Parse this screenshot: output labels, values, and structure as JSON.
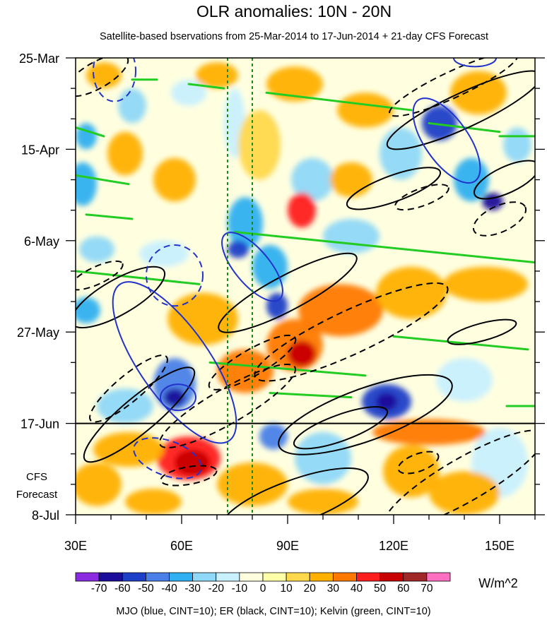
{
  "chart_data": {
    "type": "heatmap",
    "title": "OLR anomalies: 10N - 20N",
    "subtitle": "Satellite-based bservations from 25-Mar-2014 to 17-Jun-2014 + 21-day CFS Forecast",
    "x_ticks": [
      {
        "lon": 30,
        "label": "30E"
      },
      {
        "lon": 60,
        "label": "60E"
      },
      {
        "lon": 90,
        "label": "90E"
      },
      {
        "lon": 120,
        "label": "120E"
      },
      {
        "lon": 150,
        "label": "150E"
      }
    ],
    "x_range": [
      30,
      160
    ],
    "y_range_days": [
      0,
      105
    ],
    "y_ticks": [
      {
        "day": 0,
        "label": "25-Mar"
      },
      {
        "day": 21,
        "label": "15-Apr"
      },
      {
        "day": 42,
        "label": "6-May"
      },
      {
        "day": 63,
        "label": "27-May"
      },
      {
        "day": 84,
        "label": "17-Jun"
      },
      {
        "day": 105,
        "label": "8-Jul"
      }
    ],
    "forecast_label": [
      "CFS",
      "Forecast"
    ],
    "forecast_start_day": 84,
    "reference_lons": [
      73,
      80
    ],
    "colorbar": {
      "levels": [
        "-70",
        "-60",
        "-50",
        "-40",
        "-30",
        "-20",
        "-10",
        "0",
        "10",
        "20",
        "30",
        "40",
        "50",
        "60",
        "70"
      ],
      "colors": [
        "#8a2be2",
        "#1c0e9b",
        "#1e3fc8",
        "#4a7fe8",
        "#2fb0f0",
        "#8fd8f8",
        "#c8f0ff",
        "#ffffe0",
        "#ffffa8",
        "#ffd84c",
        "#ffb000",
        "#ff7800",
        "#ff1e1e",
        "#c80000",
        "#a02828",
        "#ff70c0"
      ],
      "units": "W/m^2"
    },
    "footer": "MJO (blue, CINT=10); ER (black, CINT=10); Kelvin (green, CINT=10)",
    "anomaly_blobs": [
      {
        "lon": 33,
        "day": 18,
        "rx": 3,
        "ry": 3,
        "v": -35
      },
      {
        "lon": 32,
        "day": 29,
        "rx": 4,
        "ry": 5,
        "v": -40
      },
      {
        "lon": 36,
        "day": 44,
        "rx": 5,
        "ry": 3,
        "v": -30
      },
      {
        "lon": 33,
        "day": 58,
        "rx": 4,
        "ry": 3,
        "v": -40
      },
      {
        "lon": 46,
        "day": 11,
        "rx": 4,
        "ry": 4,
        "v": -25
      },
      {
        "lon": 62,
        "day": 8,
        "rx": 5,
        "ry": 3,
        "v": -20
      },
      {
        "lon": 75,
        "day": 15,
        "rx": 3,
        "ry": 8,
        "v": -15
      },
      {
        "lon": 78,
        "day": 38,
        "rx": 5,
        "ry": 6,
        "v": -40
      },
      {
        "lon": 76,
        "day": 44,
        "rx": 3,
        "ry": 2,
        "v": -60
      },
      {
        "lon": 85,
        "day": 48,
        "rx": 5,
        "ry": 5,
        "v": -40
      },
      {
        "lon": 87,
        "day": 57,
        "rx": 3,
        "ry": 3,
        "v": -60
      },
      {
        "lon": 97,
        "day": 28,
        "rx": 6,
        "ry": 5,
        "v": -25
      },
      {
        "lon": 108,
        "day": 41,
        "rx": 8,
        "ry": 4,
        "v": -30
      },
      {
        "lon": 122,
        "day": 22,
        "rx": 6,
        "ry": 6,
        "v": -30
      },
      {
        "lon": 133,
        "day": 15,
        "rx": 5,
        "ry": 4,
        "v": -60
      },
      {
        "lon": 142,
        "day": 28,
        "rx": 5,
        "ry": 5,
        "v": -40
      },
      {
        "lon": 148,
        "day": 33,
        "rx": 3,
        "ry": 2,
        "v": -70
      },
      {
        "lon": 155,
        "day": 20,
        "rx": 4,
        "ry": 4,
        "v": -30
      },
      {
        "lon": 58,
        "day": 75,
        "rx": 6,
        "ry": 6,
        "v": -50
      },
      {
        "lon": 58,
        "day": 78,
        "rx": 3,
        "ry": 2,
        "v": -70
      },
      {
        "lon": 44,
        "day": 80,
        "rx": 8,
        "ry": 4,
        "v": -25
      },
      {
        "lon": 118,
        "day": 79,
        "rx": 7,
        "ry": 4,
        "v": -55
      },
      {
        "lon": 118,
        "day": 79,
        "rx": 3,
        "ry": 2,
        "v": -70
      },
      {
        "lon": 86,
        "day": 87,
        "rx": 4,
        "ry": 3,
        "v": -50
      },
      {
        "lon": 140,
        "day": 74,
        "rx": 8,
        "ry": 5,
        "v": -20
      },
      {
        "lon": 100,
        "day": 92,
        "rx": 8,
        "ry": 6,
        "v": -25
      },
      {
        "lon": 150,
        "day": 93,
        "rx": 8,
        "ry": 8,
        "v": -20
      },
      {
        "lon": 55,
        "day": 45,
        "rx": 7,
        "ry": 3,
        "v": -15
      },
      {
        "lon": 38,
        "day": 4,
        "rx": 5,
        "ry": 3,
        "v": 20
      },
      {
        "lon": 70,
        "day": 4,
        "rx": 6,
        "ry": 3,
        "v": 20
      },
      {
        "lon": 92,
        "day": 6,
        "rx": 8,
        "ry": 4,
        "v": 25
      },
      {
        "lon": 112,
        "day": 12,
        "rx": 8,
        "ry": 4,
        "v": 25
      },
      {
        "lon": 144,
        "day": 8,
        "rx": 8,
        "ry": 5,
        "v": 20
      },
      {
        "lon": 44,
        "day": 22,
        "rx": 5,
        "ry": 5,
        "v": 25
      },
      {
        "lon": 58,
        "day": 28,
        "rx": 6,
        "ry": 5,
        "v": 20
      },
      {
        "lon": 94,
        "day": 35,
        "rx": 4,
        "ry": 4,
        "v": 40
      },
      {
        "lon": 108,
        "day": 28,
        "rx": 6,
        "ry": 4,
        "v": 25
      },
      {
        "lon": 82,
        "day": 20,
        "rx": 6,
        "ry": 8,
        "v": 15
      },
      {
        "lon": 66,
        "day": 60,
        "rx": 10,
        "ry": 6,
        "v": 25
      },
      {
        "lon": 92,
        "day": 66,
        "rx": 8,
        "ry": 6,
        "v": 35
      },
      {
        "lon": 94,
        "day": 68,
        "rx": 4,
        "ry": 3,
        "v": 50
      },
      {
        "lon": 105,
        "day": 58,
        "rx": 12,
        "ry": 6,
        "v": 30
      },
      {
        "lon": 125,
        "day": 54,
        "rx": 10,
        "ry": 6,
        "v": 25
      },
      {
        "lon": 146,
        "day": 52,
        "rx": 12,
        "ry": 4,
        "v": 20
      },
      {
        "lon": 78,
        "day": 72,
        "rx": 8,
        "ry": 5,
        "v": 30
      },
      {
        "lon": 62,
        "day": 92,
        "rx": 9,
        "ry": 5,
        "v": 45
      },
      {
        "lon": 63,
        "day": 93,
        "rx": 5,
        "ry": 3,
        "v": 55
      },
      {
        "lon": 45,
        "day": 90,
        "rx": 10,
        "ry": 4,
        "v": 25
      },
      {
        "lon": 36,
        "day": 98,
        "rx": 7,
        "ry": 5,
        "v": 20
      },
      {
        "lon": 80,
        "day": 98,
        "rx": 10,
        "ry": 5,
        "v": 25
      },
      {
        "lon": 130,
        "day": 86,
        "rx": 16,
        "ry": 3,
        "v": 30
      },
      {
        "lon": 125,
        "day": 95,
        "rx": 8,
        "ry": 6,
        "v": 25
      },
      {
        "lon": 140,
        "day": 100,
        "rx": 10,
        "ry": 5,
        "v": 20
      },
      {
        "lon": 100,
        "day": 102,
        "rx": 10,
        "ry": 3,
        "v": 20
      },
      {
        "lon": 52,
        "day": 102,
        "rx": 8,
        "ry": 3,
        "v": 20
      }
    ],
    "mjo_contours": [
      {
        "lon": 41,
        "day": 3,
        "rx": 6,
        "ry": 7,
        "rot": 0,
        "dashed": true
      },
      {
        "lon": 58,
        "day": 50,
        "rx": 8,
        "ry": 7,
        "rot": 0,
        "dashed": true
      },
      {
        "lon": 59,
        "day": 78,
        "rx": 5,
        "ry": 3,
        "rot": 0,
        "dashed": false
      },
      {
        "lon": 58,
        "day": 70,
        "rx": 27,
        "ry": 8,
        "rot": 55,
        "dashed": false
      },
      {
        "lon": 80,
        "day": 48,
        "rx": 12,
        "ry": 4,
        "rot": 50,
        "dashed": false
      },
      {
        "lon": 56,
        "day": 92,
        "rx": 10,
        "ry": 4,
        "rot": 20,
        "dashed": true
      },
      {
        "lon": 135,
        "day": 19,
        "rx": 14,
        "ry": 5,
        "rot": 55,
        "dashed": false
      },
      {
        "lon": 143,
        "day": 0,
        "rx": 6,
        "ry": 2,
        "rot": 0,
        "dashed": false
      }
    ],
    "er_contours": [
      {
        "lon": 36,
        "day": 4,
        "rx": 10,
        "ry": 3,
        "rot": -30,
        "dashed": true
      },
      {
        "lon": 42,
        "day": 55,
        "rx": 15,
        "ry": 4,
        "rot": -30,
        "dashed": false
      },
      {
        "lon": 36,
        "day": 50,
        "rx": 8,
        "ry": 2,
        "rot": -25,
        "dashed": true
      },
      {
        "lon": 48,
        "day": 82,
        "rx": 20,
        "ry": 4,
        "rot": -40,
        "dashed": false
      },
      {
        "lon": 45,
        "day": 76,
        "rx": 14,
        "ry": 3,
        "rot": -40,
        "dashed": true
      },
      {
        "lon": 90,
        "day": 54,
        "rx": 22,
        "ry": 4,
        "rot": -28,
        "dashed": false
      },
      {
        "lon": 108,
        "day": 63,
        "rx": 30,
        "ry": 5,
        "rot": -25,
        "dashed": true
      },
      {
        "lon": 112,
        "day": 82,
        "rx": 26,
        "ry": 6,
        "rot": -20,
        "dashed": false
      },
      {
        "lon": 105,
        "day": 85,
        "rx": 14,
        "ry": 3,
        "rot": -20,
        "dashed": false
      },
      {
        "lon": 92,
        "day": 102,
        "rx": 22,
        "ry": 5,
        "rot": -20,
        "dashed": false
      },
      {
        "lon": 140,
        "day": 97,
        "rx": 26,
        "ry": 5,
        "rot": -30,
        "dashed": true
      },
      {
        "lon": 127,
        "day": 93,
        "rx": 6,
        "ry": 2,
        "rot": -20,
        "dashed": true
      },
      {
        "lon": 62,
        "day": 96,
        "rx": 8,
        "ry": 2,
        "rot": -10,
        "dashed": true
      },
      {
        "lon": 120,
        "day": 30,
        "rx": 14,
        "ry": 3,
        "rot": -20,
        "dashed": false
      },
      {
        "lon": 128,
        "day": 32,
        "rx": 8,
        "ry": 2,
        "rot": -20,
        "dashed": true
      },
      {
        "lon": 140,
        "day": 12,
        "rx": 24,
        "ry": 4,
        "rot": -25,
        "dashed": false
      },
      {
        "lon": 137,
        "day": 6,
        "rx": 20,
        "ry": 3,
        "rot": -25,
        "dashed": true
      },
      {
        "lon": 152,
        "day": 28,
        "rx": 10,
        "ry": 3,
        "rot": -25,
        "dashed": false
      },
      {
        "lon": 150,
        "day": 37,
        "rx": 8,
        "ry": 3,
        "rot": -25,
        "dashed": true
      },
      {
        "lon": 145,
        "day": 63,
        "rx": 10,
        "ry": 2,
        "rot": -15,
        "dashed": false
      },
      {
        "lon": 80,
        "day": 70,
        "rx": 14,
        "ry": 3,
        "rot": -30,
        "dashed": true
      },
      {
        "lon": 73,
        "day": 80,
        "rx": 22,
        "ry": 4,
        "rot": -30,
        "dashed": true
      }
    ],
    "kelvin_segments": [
      {
        "lon1": 75,
        "day1": 40,
        "lon2": 160,
        "day2": 47
      },
      {
        "lon1": 30,
        "day1": 49,
        "lon2": 65,
        "day2": 52
      },
      {
        "lon1": 84,
        "day1": 8,
        "lon2": 125,
        "day2": 12
      },
      {
        "lon1": 30,
        "day1": 16,
        "lon2": 38,
        "day2": 18
      },
      {
        "lon1": 30,
        "day1": 27,
        "lon2": 45,
        "day2": 29
      },
      {
        "lon1": 33,
        "day1": 36,
        "lon2": 46,
        "day2": 37
      },
      {
        "lon1": 62,
        "day1": 6,
        "lon2": 72,
        "day2": 7
      },
      {
        "lon1": 46,
        "day1": 5,
        "lon2": 53,
        "day2": 5
      },
      {
        "lon1": 68,
        "day1": 70,
        "lon2": 112,
        "day2": 73
      },
      {
        "lon1": 85,
        "day1": 77,
        "lon2": 108,
        "day2": 78
      },
      {
        "lon1": 120,
        "day1": 64,
        "lon2": 158,
        "day2": 67
      },
      {
        "lon1": 130,
        "day1": 15,
        "lon2": 150,
        "day2": 17
      },
      {
        "lon1": 150,
        "day1": 18,
        "lon2": 160,
        "day2": 18
      },
      {
        "lon1": 152,
        "day1": 80,
        "lon2": 160,
        "day2": 80
      }
    ]
  }
}
